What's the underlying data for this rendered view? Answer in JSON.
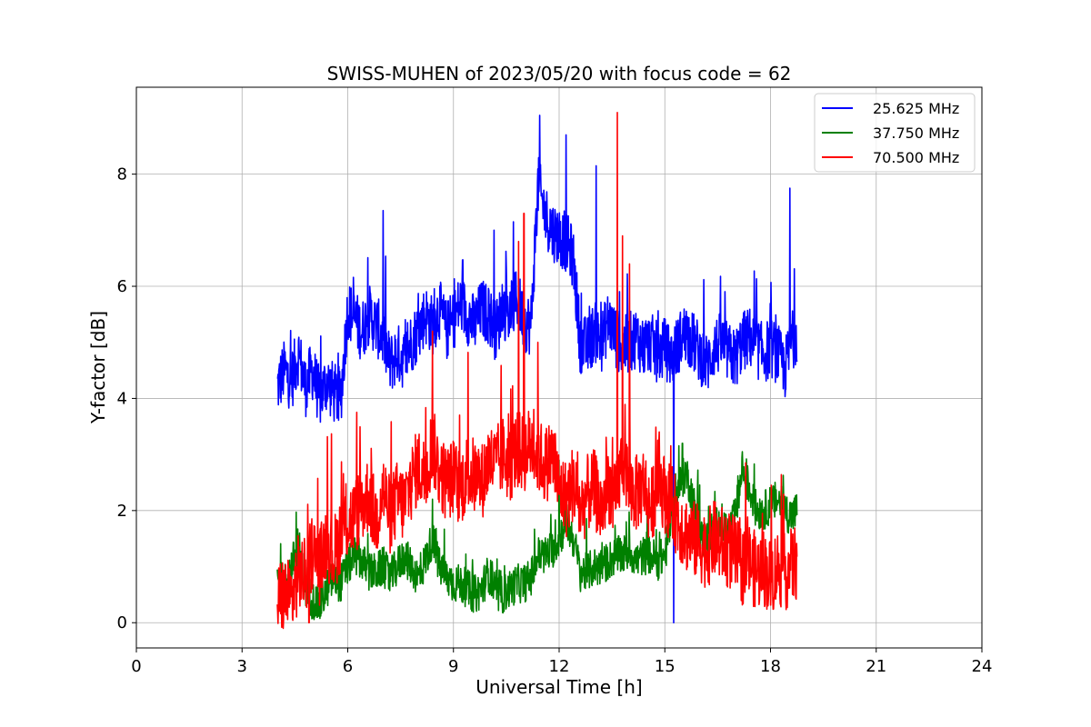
{
  "chart_data": {
    "type": "line",
    "title": "SWISS-MUHEN of 2023/05/20 with focus code = 62",
    "xlabel": "Universal Time [h]",
    "ylabel": "Y-factor [dB]",
    "xlim": [
      0,
      24
    ],
    "ylim": [
      -0.45,
      9.55
    ],
    "xticks": [
      0,
      3,
      6,
      9,
      12,
      15,
      18,
      21,
      24
    ],
    "yticks": [
      0,
      2,
      4,
      6,
      8
    ],
    "grid": true,
    "legend_position": "top-right",
    "series": [
      {
        "name": "25.625 MHz",
        "color": "#0000ff",
        "x": [
          4.0,
          4.2,
          4.4,
          4.6,
          4.8,
          5.0,
          5.2,
          5.4,
          5.6,
          5.8,
          6.0,
          6.2,
          6.4,
          6.6,
          6.8,
          7.0,
          7.2,
          7.4,
          7.6,
          7.8,
          8.0,
          8.2,
          8.4,
          8.6,
          8.8,
          9.0,
          9.2,
          9.4,
          9.6,
          9.8,
          10.0,
          10.2,
          10.4,
          10.6,
          10.8,
          11.0,
          11.2,
          11.4,
          11.6,
          11.8,
          12.0,
          12.2,
          12.4,
          12.6,
          12.8,
          13.0,
          13.2,
          13.4,
          13.6,
          13.8,
          14.0,
          14.2,
          14.4,
          14.6,
          14.8,
          15.0,
          15.2,
          15.4,
          15.6,
          15.8,
          16.0,
          16.2,
          16.4,
          16.6,
          16.8,
          17.0,
          17.2,
          17.4,
          17.6,
          17.8,
          18.0,
          18.2,
          18.4,
          18.6,
          18.75
        ],
        "y": [
          4.2,
          4.5,
          4.3,
          4.8,
          4.2,
          4.5,
          4.0,
          4.3,
          4.1,
          4.0,
          5.6,
          5.4,
          5.2,
          5.5,
          5.3,
          5.1,
          4.6,
          4.8,
          4.7,
          5.0,
          5.2,
          5.5,
          5.3,
          5.6,
          5.2,
          5.4,
          5.7,
          5.5,
          5.3,
          5.6,
          5.5,
          5.2,
          5.6,
          5.5,
          5.8,
          5.4,
          5.3,
          7.8,
          7.3,
          7.0,
          6.9,
          6.8,
          6.5,
          5.0,
          4.9,
          5.2,
          5.0,
          5.4,
          5.1,
          4.9,
          5.0,
          5.1,
          4.9,
          5.0,
          4.8,
          4.9,
          4.7,
          5.0,
          5.2,
          5.0,
          4.8,
          4.6,
          4.9,
          5.0,
          4.8,
          4.7,
          5.0,
          5.1,
          4.9,
          4.8,
          4.9,
          4.8,
          4.5,
          5.0,
          5.2
        ]
      },
      {
        "name": "37.750 MHz",
        "color": "#008000",
        "x": [
          4.0,
          4.2,
          4.4,
          4.6,
          4.8,
          5.0,
          5.2,
          5.4,
          5.6,
          5.8,
          6.0,
          6.2,
          6.4,
          6.6,
          6.8,
          7.0,
          7.2,
          7.4,
          7.6,
          7.8,
          8.0,
          8.2,
          8.4,
          8.6,
          8.8,
          9.0,
          9.2,
          9.4,
          9.6,
          9.8,
          10.0,
          10.2,
          10.4,
          10.6,
          10.8,
          11.0,
          11.2,
          11.4,
          11.6,
          11.8,
          12.0,
          12.2,
          12.4,
          12.6,
          12.8,
          13.0,
          13.2,
          13.4,
          13.6,
          13.8,
          14.0,
          14.2,
          14.4,
          14.6,
          14.8,
          15.0,
          15.2,
          15.4,
          15.6,
          15.8,
          16.0,
          16.2,
          16.4,
          16.6,
          16.8,
          17.0,
          17.2,
          17.4,
          17.6,
          17.8,
          18.0,
          18.2,
          18.4,
          18.6,
          18.75
        ],
        "y": [
          0.8,
          0.7,
          1.0,
          1.4,
          0.6,
          0.4,
          0.3,
          0.6,
          0.8,
          0.7,
          1.0,
          1.2,
          1.1,
          0.9,
          0.9,
          1.0,
          0.8,
          1.0,
          1.2,
          1.0,
          0.8,
          1.1,
          1.5,
          1.0,
          0.8,
          0.7,
          0.7,
          0.6,
          0.5,
          0.6,
          0.9,
          0.5,
          0.5,
          0.6,
          0.7,
          0.7,
          0.8,
          1.2,
          1.2,
          1.3,
          1.5,
          1.8,
          1.5,
          0.9,
          0.9,
          1.0,
          1.0,
          1.1,
          1.2,
          1.2,
          1.3,
          1.1,
          1.2,
          1.2,
          1.1,
          1.2,
          1.9,
          2.4,
          2.7,
          2.2,
          1.5,
          1.5,
          1.7,
          1.8,
          1.6,
          1.9,
          2.7,
          2.4,
          2.0,
          2.0,
          2.1,
          2.2,
          2.0,
          1.9,
          2.0
        ]
      },
      {
        "name": "70.500 MHz",
        "color": "#ff0000",
        "x": [
          4.0,
          4.2,
          4.4,
          4.6,
          4.8,
          5.0,
          5.2,
          5.4,
          5.6,
          5.8,
          6.0,
          6.2,
          6.4,
          6.6,
          6.8,
          7.0,
          7.2,
          7.4,
          7.6,
          7.8,
          8.0,
          8.2,
          8.4,
          8.6,
          8.8,
          9.0,
          9.2,
          9.4,
          9.6,
          9.8,
          10.0,
          10.2,
          10.4,
          10.6,
          10.8,
          11.0,
          11.2,
          11.4,
          11.6,
          11.8,
          12.0,
          12.2,
          12.4,
          12.6,
          12.8,
          13.0,
          13.2,
          13.4,
          13.6,
          13.8,
          14.0,
          14.2,
          14.4,
          14.6,
          14.8,
          15.0,
          15.2,
          15.4,
          15.6,
          15.8,
          16.0,
          16.2,
          16.4,
          16.6,
          16.8,
          17.0,
          17.2,
          17.4,
          17.6,
          17.8,
          18.0,
          18.2,
          18.4,
          18.6,
          18.75
        ],
        "y": [
          0.4,
          0.5,
          0.4,
          0.9,
          0.8,
          1.3,
          1.0,
          1.5,
          1.2,
          1.6,
          1.8,
          1.9,
          2.1,
          2.3,
          1.8,
          2.4,
          1.9,
          2.2,
          2.1,
          2.5,
          2.8,
          2.6,
          3.2,
          2.7,
          2.5,
          2.6,
          2.4,
          2.7,
          2.6,
          2.5,
          2.9,
          2.8,
          3.0,
          2.8,
          3.1,
          3.0,
          3.2,
          3.0,
          2.8,
          3.0,
          2.4,
          2.2,
          2.5,
          2.0,
          2.3,
          2.4,
          2.0,
          2.5,
          2.1,
          3.0,
          2.4,
          2.3,
          2.5,
          2.0,
          2.6,
          2.3,
          2.1,
          1.8,
          1.6,
          1.5,
          1.4,
          1.3,
          1.5,
          1.4,
          1.3,
          1.2,
          1.0,
          1.1,
          0.9,
          1.0,
          0.8,
          1.0,
          0.9,
          1.0,
          1.1
        ]
      }
    ],
    "spikes": [
      {
        "series": "25.625 MHz",
        "x": 11.45,
        "y": 9.05
      },
      {
        "series": "25.625 MHz",
        "x": 12.2,
        "y": 8.7
      },
      {
        "series": "25.625 MHz",
        "x": 13.05,
        "y": 8.15
      },
      {
        "series": "25.625 MHz",
        "x": 18.55,
        "y": 7.75
      },
      {
        "series": "25.625 MHz",
        "x": 7.0,
        "y": 7.35
      },
      {
        "series": "25.625 MHz",
        "x": 10.7,
        "y": 7.15
      },
      {
        "series": "25.625 MHz",
        "x": 10.15,
        "y": 7.0
      },
      {
        "series": "25.625 MHz",
        "x": 15.25,
        "y": 0.0
      },
      {
        "series": "70.500 MHz",
        "x": 13.65,
        "y": 9.1
      },
      {
        "series": "70.500 MHz",
        "x": 11.0,
        "y": 7.3
      },
      {
        "series": "70.500 MHz",
        "x": 13.8,
        "y": 6.9
      },
      {
        "series": "70.500 MHz",
        "x": 14.0,
        "y": 6.4
      },
      {
        "series": "70.500 MHz",
        "x": 10.85,
        "y": 6.8
      },
      {
        "series": "70.500 MHz",
        "x": 8.4,
        "y": 5.2
      },
      {
        "series": "70.500 MHz",
        "x": 11.4,
        "y": 5.0
      },
      {
        "series": "70.500 MHz",
        "x": 4.9,
        "y": 0.0
      },
      {
        "series": "37.750 MHz",
        "x": 15.5,
        "y": 3.2
      },
      {
        "series": "37.750 MHz",
        "x": 17.2,
        "y": 3.05
      },
      {
        "series": "37.750 MHz",
        "x": 12.0,
        "y": 2.9
      }
    ]
  }
}
